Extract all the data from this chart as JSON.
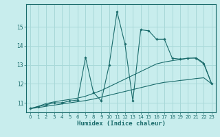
{
  "xlabel": "Humidex (Indice chaleur)",
  "bg_color": "#c8eded",
  "grid_color": "#a8d8d8",
  "line_color": "#1a6b6b",
  "x_data": [
    0,
    1,
    2,
    3,
    4,
    5,
    6,
    7,
    8,
    9,
    10,
    11,
    12,
    13,
    14,
    15,
    16,
    17,
    18,
    19,
    20,
    21,
    22,
    23
  ],
  "y_main": [
    10.7,
    10.8,
    10.9,
    11.0,
    11.0,
    11.1,
    11.15,
    13.4,
    11.55,
    11.1,
    13.0,
    15.8,
    14.1,
    11.1,
    14.85,
    14.8,
    14.35,
    14.35,
    13.35,
    13.3,
    13.35,
    13.35,
    13.05,
    12.0
  ],
  "y_lower": [
    10.7,
    10.75,
    10.82,
    10.88,
    10.94,
    11.0,
    11.06,
    11.12,
    11.2,
    11.3,
    11.4,
    11.5,
    11.6,
    11.7,
    11.8,
    11.9,
    12.0,
    12.08,
    12.12,
    12.18,
    12.22,
    12.28,
    12.32,
    12.0
  ],
  "y_upper": [
    10.7,
    10.82,
    10.96,
    11.05,
    11.12,
    11.18,
    11.25,
    11.35,
    11.5,
    11.65,
    11.85,
    12.05,
    12.25,
    12.45,
    12.65,
    12.85,
    13.05,
    13.15,
    13.22,
    13.28,
    13.35,
    13.38,
    13.1,
    12.0
  ],
  "ylim": [
    10.5,
    16.2
  ],
  "xlim": [
    -0.5,
    23.5
  ],
  "yticks": [
    11,
    12,
    13,
    14,
    15
  ],
  "xticks": [
    0,
    1,
    2,
    3,
    4,
    5,
    6,
    7,
    8,
    9,
    10,
    11,
    12,
    13,
    14,
    15,
    16,
    17,
    18,
    19,
    20,
    21,
    22,
    23
  ]
}
